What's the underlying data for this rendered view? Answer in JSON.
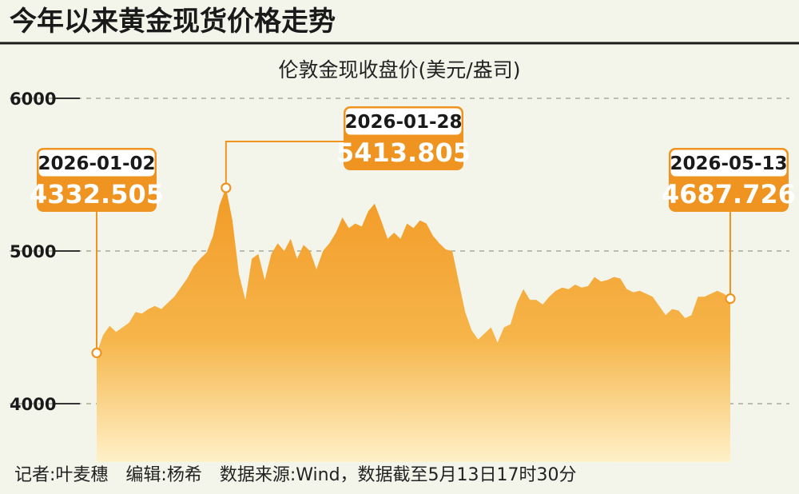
{
  "header": {
    "title": "今年以来黄金现货价格走势",
    "subtitle": "伦敦金现收盘价(美元/盎司)"
  },
  "footer": {
    "credits": "记者:叶麦穗　编辑:杨希　数据来源:Wind，数据截至5月13日17时30分"
  },
  "colors": {
    "accent": "#ef9421",
    "fill_top": "#f29a26",
    "fill_bottom": "#fff1c8",
    "background": "#f3f5ea"
  },
  "chart_data": {
    "type": "area",
    "title": "伦敦金现收盘价(美元/盎司)",
    "ylim": [
      4000,
      6000
    ],
    "yticks": [
      "4000",
      "5000",
      "6000"
    ],
    "grid": true,
    "x_range": [
      "2026-01-02",
      "2026-05-13"
    ],
    "values": [
      4332.505,
      4450,
      4510,
      4470,
      4500,
      4530,
      4600,
      4590,
      4620,
      4640,
      4620,
      4660,
      4700,
      4760,
      4820,
      4900,
      4950,
      4990,
      5100,
      5300,
      5413.805,
      5200,
      4850,
      4680,
      4950,
      4980,
      4810,
      4980,
      5050,
      5000,
      5080,
      4950,
      5040,
      5000,
      4880,
      5000,
      5050,
      5120,
      5220,
      5150,
      5180,
      5160,
      5260,
      5310,
      5200,
      5080,
      5120,
      5080,
      5180,
      5150,
      5200,
      5180,
      5100,
      5050,
      5010,
      5000,
      4800,
      4600,
      4480,
      4420,
      4460,
      4500,
      4400,
      4500,
      4520,
      4660,
      4750,
      4680,
      4680,
      4650,
      4700,
      4740,
      4760,
      4750,
      4780,
      4760,
      4770,
      4830,
      4800,
      4810,
      4830,
      4820,
      4750,
      4730,
      4740,
      4720,
      4700,
      4640,
      4580,
      4620,
      4610,
      4560,
      4580,
      4700,
      4700,
      4720,
      4740,
      4720,
      4687.726
    ],
    "callouts": [
      {
        "date": "2026-01-02",
        "value": "4332.505",
        "index": 0
      },
      {
        "date": "2026-01-28",
        "value": "5413.805",
        "index": 20
      },
      {
        "date": "2026-05-13",
        "value": "4687.726",
        "index": 98
      }
    ]
  }
}
